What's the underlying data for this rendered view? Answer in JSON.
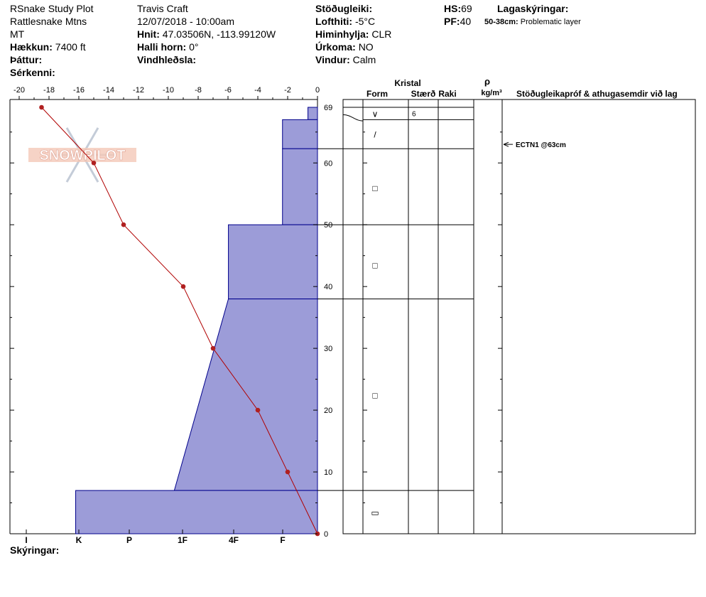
{
  "header": {
    "site": "RSnake Study Plot",
    "range": "Rattlesnake Mtns",
    "state": "MT",
    "elevation_label": "Hækkun:",
    "elevation": "7400 ft",
    "aspect_label": "Þáttur:",
    "aspect": "",
    "specifics_label": "Sérkenni:",
    "specifics": "",
    "observer": "Travis  Craft",
    "datetime": "12/07/2018 - 10:00am",
    "coords_label": "Hnit:",
    "coords": "47.03506N, -113.99120W",
    "slope_label": "Halli horn:",
    "slope": "0°",
    "wind_loading_label": "Vindhleðsla:",
    "wind_loading": "",
    "stability_label": "Stöðugleiki:",
    "stability": "",
    "air_temp_label": "Lofthiti:",
    "air_temp": "-5°C",
    "sky_label": "Himinhylja:",
    "sky": "CLR",
    "precip_label": "Úrkoma:",
    "precip": "NO",
    "wind_label": "Vindur:",
    "wind": "Calm",
    "hs_label": "HS:",
    "hs": "69",
    "pf_label": "PF:",
    "pf": "40",
    "layer_notes_label": "Lagaskýringar:",
    "layer_note_range": "50-38cm:",
    "layer_note_text": "Problematic layer",
    "notes_label": "Skýringar:"
  },
  "logo": {
    "text": "SNOWPILOT"
  },
  "table_headers": {
    "crystal": "Kristal",
    "form": "Form",
    "size": "Stærð",
    "moisture": "Raki",
    "rho": "ρ",
    "density_unit": "kg/m³",
    "comments": "Stöðugleikapróf & athugasemdir við lag"
  },
  "colors": {
    "hardness_fill": "#9c9cd8",
    "hardness_stroke": "#00008b",
    "temp_line": "#b00000",
    "temp_point": "#b02020"
  },
  "chart_data": {
    "type": "snow-profile",
    "temperature_axis": {
      "ticks": [
        -20,
        -18,
        -16,
        -14,
        -12,
        -10,
        -8,
        -6,
        -4,
        -2,
        0
      ],
      "range": [
        -20,
        0
      ]
    },
    "depth_axis": {
      "ticks": [
        0,
        10,
        20,
        30,
        40,
        50,
        60,
        69
      ],
      "range": [
        0,
        69
      ]
    },
    "hardness_axis": {
      "labels": [
        "I",
        "K",
        "P",
        "1F",
        "4F",
        "F"
      ],
      "values": [
        0.5,
        1.5,
        2.5,
        3.5,
        4.5,
        5.5
      ]
    },
    "temperature_profile": [
      {
        "depth": 69,
        "temp": -18.5
      },
      {
        "depth": 60,
        "temp": -15
      },
      {
        "depth": 50,
        "temp": -13
      },
      {
        "depth": 40,
        "temp": -9
      },
      {
        "depth": 30,
        "temp": -7
      },
      {
        "depth": 20,
        "temp": -4
      },
      {
        "depth": 10,
        "temp": -2
      },
      {
        "depth": 0,
        "temp": 0
      }
    ],
    "layers": [
      {
        "top": 69,
        "bottom": 67,
        "hardness_top": 0.3,
        "hardness_bottom": 0.3,
        "form": "∨",
        "size": "6"
      },
      {
        "top": 67,
        "bottom": 62.3,
        "hardness_top": 1.1,
        "hardness_bottom": 1.1,
        "form": "/",
        "size": ""
      },
      {
        "top": 62.3,
        "bottom": 50,
        "hardness_top": 1.1,
        "hardness_bottom": 1.1,
        "form": "□",
        "size": ""
      },
      {
        "top": 50,
        "bottom": 38,
        "hardness_top": 2.8,
        "hardness_bottom": 2.8,
        "form": "□",
        "size": ""
      },
      {
        "top": 38,
        "bottom": 7,
        "hardness_top": 2.8,
        "hardness_bottom": 4.5,
        "form": "□",
        "size": ""
      },
      {
        "top": 7,
        "bottom": 0,
        "hardness_top": 7.6,
        "hardness_bottom": 7.6,
        "form": "▭",
        "size": ""
      }
    ],
    "test_results": [
      {
        "depth": 63,
        "label": "ECTN1 @63cm"
      }
    ]
  }
}
